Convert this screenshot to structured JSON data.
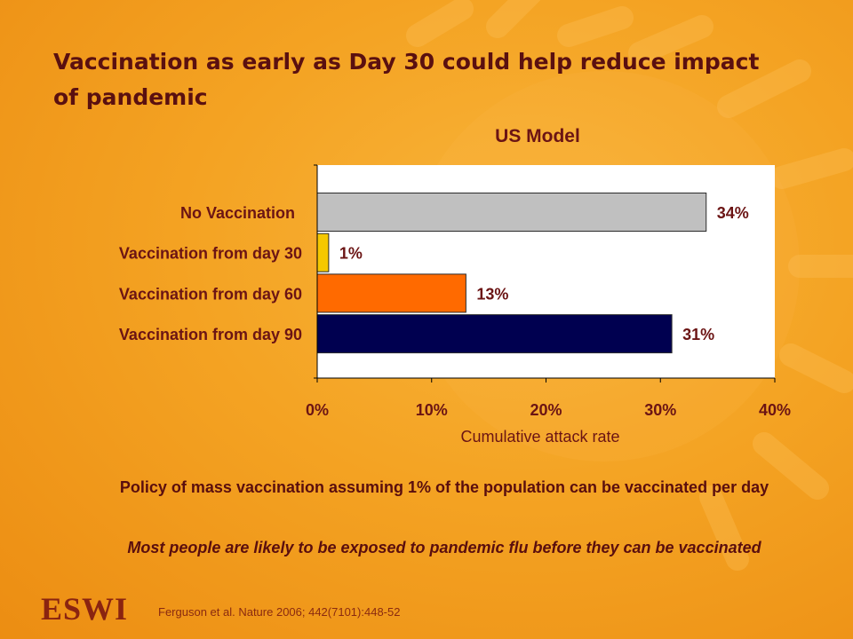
{
  "slide": {
    "title": "Vaccination as early as Day 30 could help reduce impact of pandemic",
    "footnote_1": "Policy of mass vaccination assuming 1% of the population can be vaccinated per day",
    "footnote_2": "Most people are likely to be exposed to pandemic flu before they can be vaccinated",
    "citation": "Ferguson et al. Nature 2006; 442(7101):448-52",
    "logo": "ESWI"
  },
  "chart_data": {
    "type": "bar",
    "orientation": "horizontal",
    "title": "US Model",
    "xlabel": "Cumulative attack rate",
    "ylabel": "",
    "xlim": [
      0,
      40
    ],
    "x_ticks": [
      "0%",
      "10%",
      "20%",
      "30%",
      "40%"
    ],
    "categories": [
      "No Vaccination",
      "Vaccination from day 30",
      "Vaccination from day 60",
      "Vaccination from day 90"
    ],
    "values": [
      34,
      1,
      13,
      31
    ],
    "value_labels": [
      "34%",
      "1%",
      "13%",
      "31%"
    ],
    "bar_colors": [
      "#c0c0c0",
      "#f5c800",
      "#ff6a00",
      "#000050"
    ],
    "grid": false,
    "legend": "none"
  },
  "colors": {
    "background": "#f4a323",
    "title_text": "#5a1010",
    "chart_text": "#6b1414",
    "plot_area": "#ffffff"
  }
}
